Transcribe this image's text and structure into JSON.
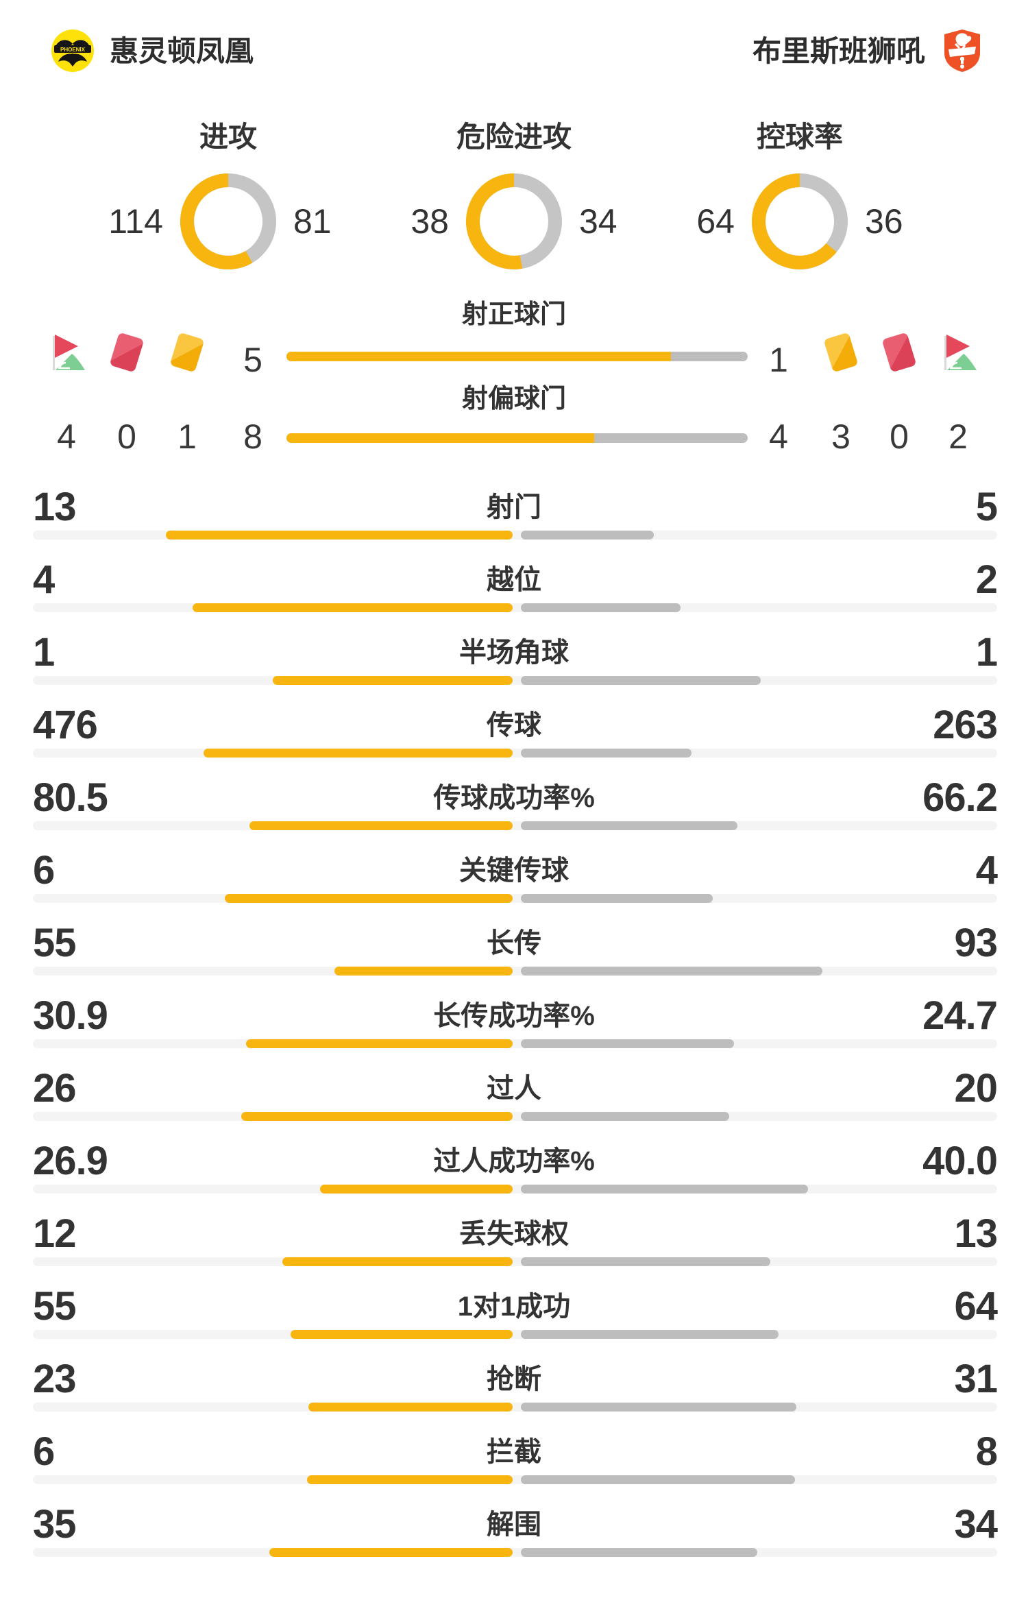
{
  "header": {
    "home": {
      "name": "惠灵顿凤凰",
      "logo": "wellington-phoenix-badge"
    },
    "away": {
      "name": "布里斯班狮吼",
      "logo": "brisbane-roar-badge"
    }
  },
  "chart_data": {
    "type": "match-statistics",
    "donuts": [
      {
        "title": "进攻",
        "home": 114,
        "away": 81
      },
      {
        "title": "危险进攻",
        "home": 38,
        "away": 34
      },
      {
        "title": "控球率",
        "home": 64,
        "away": 36
      }
    ],
    "discipline": {
      "home": {
        "corners": "4",
        "red_cards": "0",
        "yellow_cards": "1"
      },
      "away": {
        "yellow_cards": "3",
        "red_cards": "0",
        "corners": "2"
      }
    },
    "shot_bars": [
      {
        "title": "射正球门",
        "home": "5",
        "away": "1"
      },
      {
        "title": "射偏球门",
        "home": "8",
        "away": "4"
      }
    ],
    "stat_rows": [
      {
        "label": "射门",
        "home": "13",
        "away": "5"
      },
      {
        "label": "越位",
        "home": "4",
        "away": "2"
      },
      {
        "label": "半场角球",
        "home": "1",
        "away": "1"
      },
      {
        "label": "传球",
        "home": "476",
        "away": "263"
      },
      {
        "label": "传球成功率%",
        "home": "80.5",
        "away": "66.2"
      },
      {
        "label": "关键传球",
        "home": "6",
        "away": "4"
      },
      {
        "label": "长传",
        "home": "55",
        "away": "93"
      },
      {
        "label": "长传成功率%",
        "home": "30.9",
        "away": "24.7"
      },
      {
        "label": "过人",
        "home": "26",
        "away": "20"
      },
      {
        "label": "过人成功率%",
        "home": "26.9",
        "away": "40.0"
      },
      {
        "label": "丢失球权",
        "home": "12",
        "away": "13"
      },
      {
        "label": "1对1成功",
        "home": "55",
        "away": "64"
      },
      {
        "label": "抢断",
        "home": "23",
        "away": "31"
      },
      {
        "label": "拦截",
        "home": "6",
        "away": "8"
      },
      {
        "label": "解围",
        "home": "35",
        "away": "34"
      }
    ],
    "legend": "yellow = home (惠灵顿凤凰), gray = away (布里斯班狮吼), bars anchored at center, length proportional to value share"
  },
  "colors": {
    "home_accent": "#F8B50F",
    "away_bar": "#BDBDBD",
    "donut_gray": "#C5C5C5",
    "track": "#F4F4F4",
    "text": "#333333",
    "red_card": "#DC4257",
    "yellow_card": "#F4AD08",
    "flag_red": "#E5485A",
    "flag_green": "#7DCE93",
    "phoenix_yellow": "#FFE10A",
    "roar_orange": "#EE5125"
  }
}
